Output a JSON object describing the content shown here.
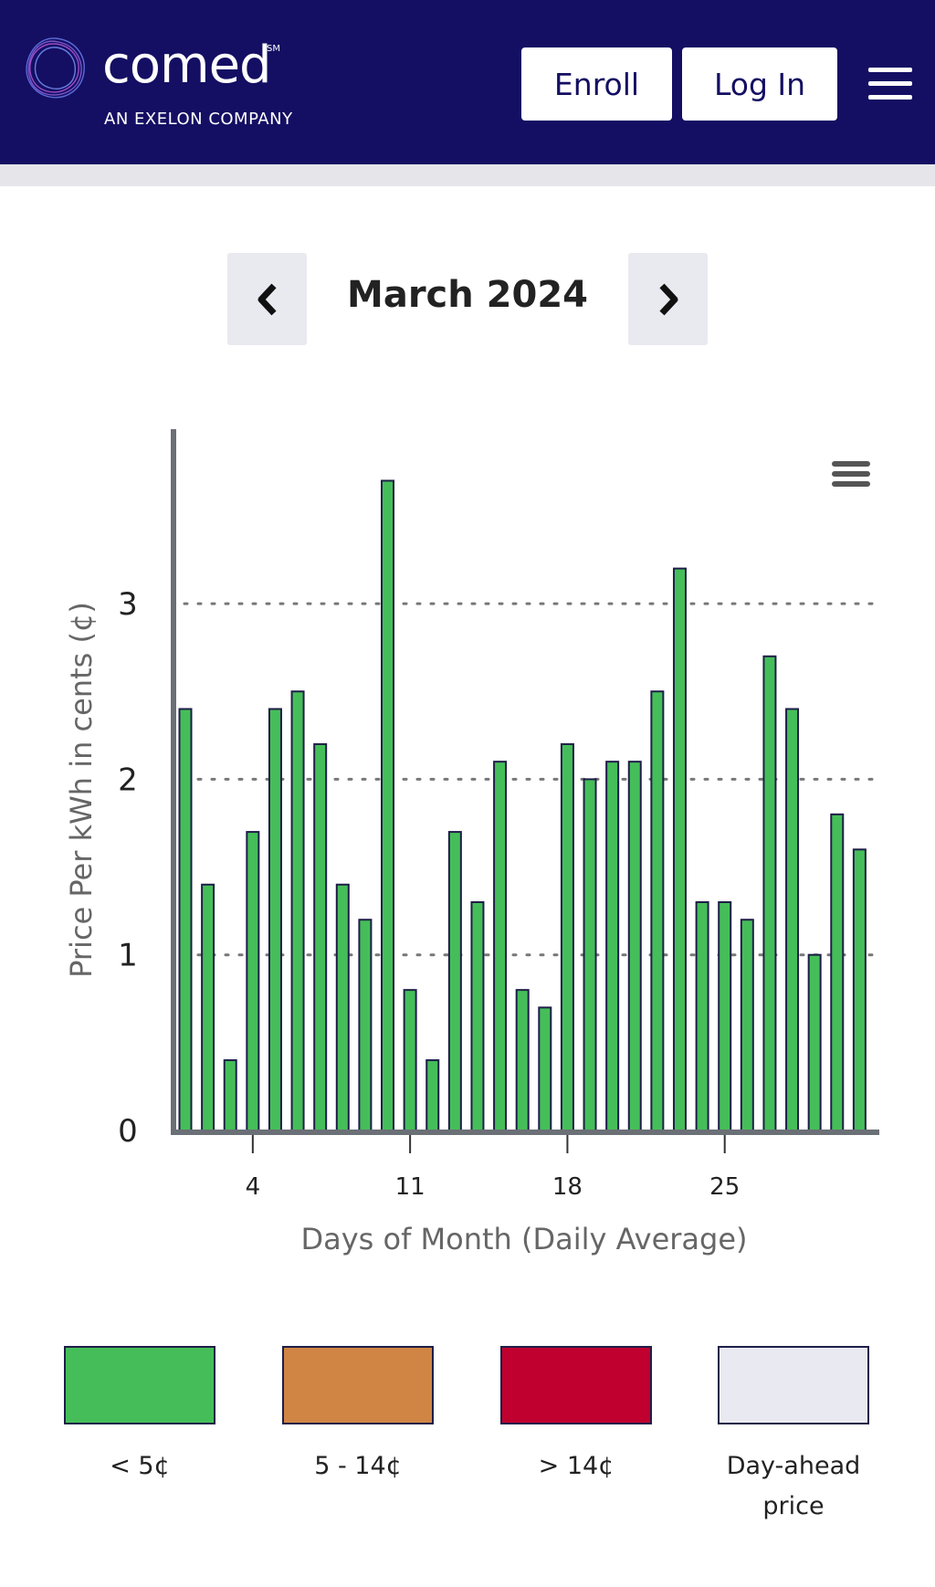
{
  "header": {
    "logo_text": "comed",
    "logo_sm": "SM",
    "logo_tagline": "AN EXELON COMPANY",
    "enroll_label": "Enroll",
    "login_label": "Log In",
    "menu_icon": "hamburger-menu-icon",
    "background": "#140f63"
  },
  "month_nav": {
    "title": "March 2024",
    "prev_icon": "chevron-left-icon",
    "next_icon": "chevron-right-icon"
  },
  "chart_menu_icon": "chart-context-menu-icon",
  "chart_data": {
    "type": "bar",
    "title": "",
    "xlabel": "Days of Month (Daily Average)",
    "ylabel": "Price Per kWh in cents (¢)",
    "x": [
      1,
      2,
      3,
      4,
      5,
      6,
      7,
      8,
      9,
      10,
      11,
      12,
      13,
      14,
      15,
      16,
      17,
      18,
      19,
      20,
      21,
      22,
      23,
      24,
      25,
      26,
      27,
      28,
      29,
      30,
      31
    ],
    "values": [
      2.4,
      1.4,
      0.4,
      1.7,
      2.4,
      2.5,
      2.2,
      1.4,
      1.2,
      3.7,
      0.8,
      0.4,
      1.7,
      1.3,
      2.1,
      0.8,
      0.7,
      2.2,
      2.0,
      2.1,
      2.1,
      2.5,
      3.2,
      1.3,
      1.3,
      1.2,
      2.7,
      2.4,
      1.0,
      1.8,
      1.6
    ],
    "x_ticks": [
      4,
      11,
      18,
      25
    ],
    "y_ticks": [
      0,
      1,
      2,
      3
    ],
    "ylim": [
      0,
      3.9
    ],
    "grid": "dotted horizontal",
    "bar_color": "#45be59"
  },
  "legend": [
    {
      "label": "< 5¢",
      "color": "#45be59"
    },
    {
      "label": "5 - 14¢",
      "color": "#d18545"
    },
    {
      "label": "> 14¢",
      "color": "#c0002e"
    },
    {
      "label": "Day-ahead price",
      "color": "#e9e9f2"
    }
  ]
}
